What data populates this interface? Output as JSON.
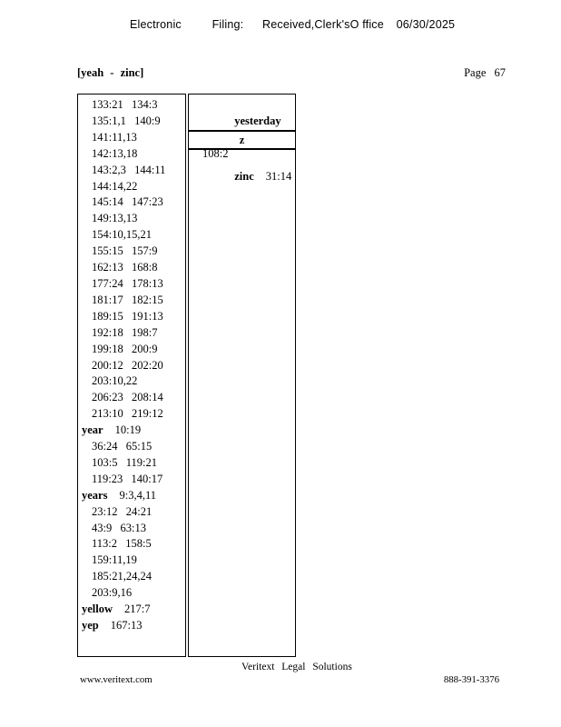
{
  "header": {
    "filing_words": [
      "Electronic",
      "Filing:",
      "Received,Clerk'sO ffice"
    ],
    "filing_date": "06/30/2025",
    "range_label": "[yeah - zinc]",
    "page_word": "Page",
    "page_number": "67"
  },
  "index": {
    "left_column": [
      {
        "refs": "133:21  134:3"
      },
      {
        "refs": "135:1,1  140:9"
      },
      {
        "refs": "141:11,13"
      },
      {
        "refs": "142:13,18"
      },
      {
        "refs": "143:2,3  144:11"
      },
      {
        "refs": "144:14,22"
      },
      {
        "refs": "145:14  147:23"
      },
      {
        "refs": "149:13,13"
      },
      {
        "refs": "154:10,15,21"
      },
      {
        "refs": "155:15  157:9"
      },
      {
        "refs": "162:13  168:8"
      },
      {
        "refs": "177:24  178:13"
      },
      {
        "refs": "181:17  182:15"
      },
      {
        "refs": "189:15  191:13"
      },
      {
        "refs": "192:18  198:7"
      },
      {
        "refs": "199:18  200:9"
      },
      {
        "refs": "200:12  202:20"
      },
      {
        "refs": "203:10,22"
      },
      {
        "refs": "206:23  208:14"
      },
      {
        "refs": "213:10  219:12"
      },
      {
        "word": "year",
        "refs": "10:19"
      },
      {
        "refs": "36:24  65:15"
      },
      {
        "refs": "103:5  119:21"
      },
      {
        "refs": "119:23  140:17"
      },
      {
        "word": "years",
        "refs": "9:3,4,11"
      },
      {
        "refs": "23:12  24:21"
      },
      {
        "refs": "43:9  63:13"
      },
      {
        "refs": "113:2  158:5"
      },
      {
        "refs": "159:11,19"
      },
      {
        "refs": "185:21,24,24"
      },
      {
        "refs": "203:9,16"
      },
      {
        "word": "yellow",
        "refs": "217:7"
      },
      {
        "word": "yep",
        "refs": "167:13"
      }
    ],
    "right_column": {
      "yesterday": {
        "word": "yesterday",
        "refs": "108:2"
      },
      "section_letter": "z",
      "zinc": {
        "word": "zinc",
        "refs": "31:14"
      }
    }
  },
  "footer": {
    "company": "Veritext Legal Solutions",
    "website": "www.veritext.com",
    "phone": "888-391-3376"
  },
  "colors": {
    "text": "#000000",
    "background": "#ffffff",
    "border": "#000000"
  }
}
